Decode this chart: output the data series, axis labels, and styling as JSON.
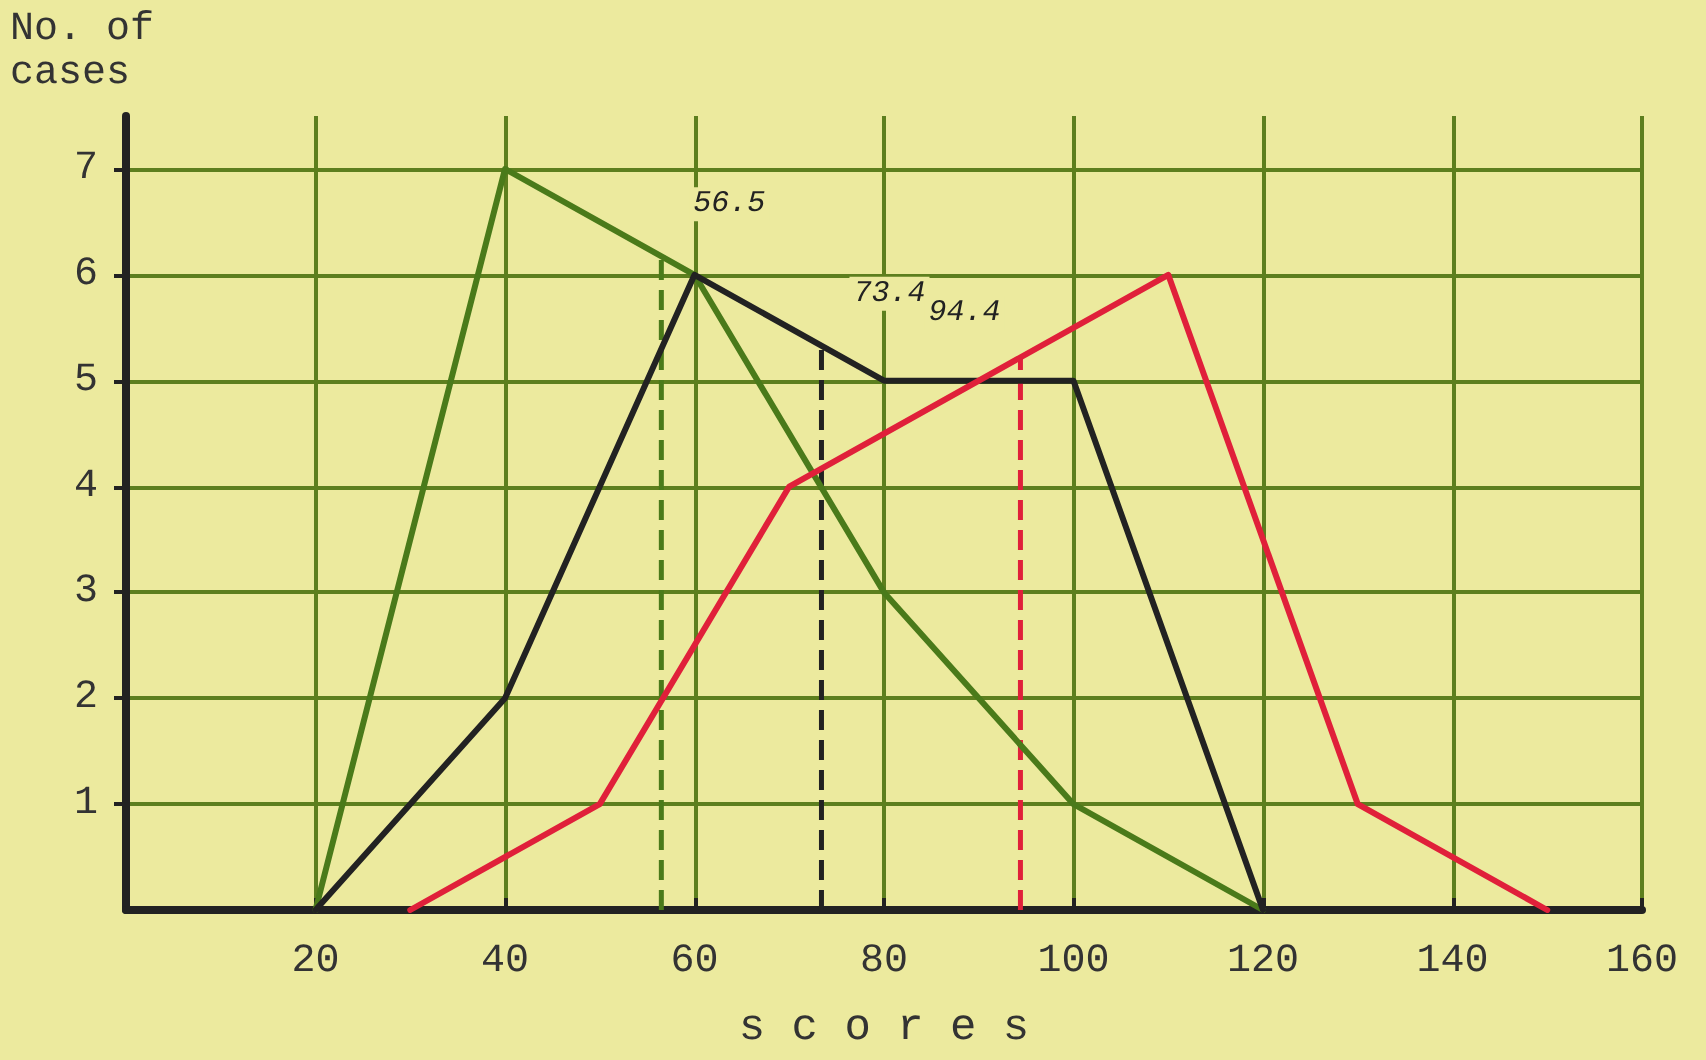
{
  "chart_data": {
    "type": "line",
    "xlabel": "s c o r e s",
    "ylabel": "No. of\ncases",
    "xlim": [
      0,
      160
    ],
    "xticks": [
      20,
      40,
      60,
      80,
      100,
      120,
      140,
      160
    ],
    "ylim": [
      0,
      7.5
    ],
    "yticks": [
      1,
      2,
      3,
      4,
      5,
      6,
      7
    ],
    "grid": true,
    "marker": "none",
    "line_style": "solid",
    "series": [
      {
        "color": "#4a7a1a",
        "x": [
          20,
          40,
          60,
          80,
          100,
          120
        ],
        "values": [
          0,
          7,
          6,
          3,
          1,
          0
        ]
      },
      {
        "color": "#222222",
        "x": [
          20,
          40,
          60,
          80,
          100,
          120
        ],
        "values": [
          0,
          2,
          6,
          5,
          5,
          0
        ]
      },
      {
        "color": "#e0203a",
        "x": [
          30,
          50,
          70,
          110,
          130,
          150
        ],
        "values": [
          0,
          1,
          4,
          6,
          1,
          0
        ]
      }
    ],
    "ref_lines": [
      {
        "axis": "x",
        "value": 56.5,
        "label": "56.5",
        "color": "#4a7a1a",
        "line_style": "dashed"
      },
      {
        "axis": "x",
        "value": 73.4,
        "label": "73.4",
        "color": "#222222",
        "line_style": "dashed"
      },
      {
        "axis": "x",
        "value": 94.4,
        "label": "94.4",
        "color": "#e0203a",
        "line_style": "dashed"
      }
    ]
  }
}
